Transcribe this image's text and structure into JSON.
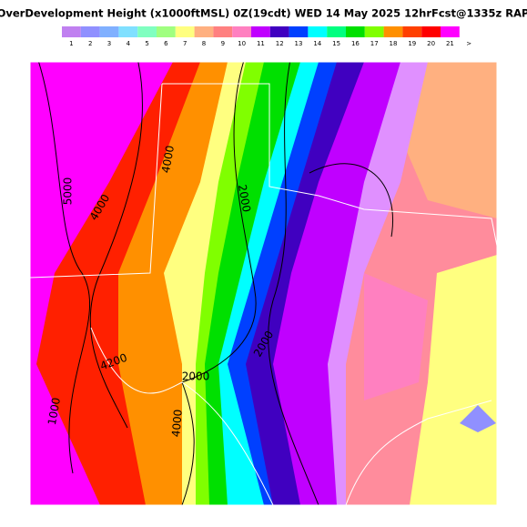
{
  "title": "OverDevelopment Height  (x1000ftMSL)  0Z(19cdt) WED 14 May 2025  12hrFcst@1335z RAP",
  "colorbar": {
    "labels": [
      "1",
      "2",
      "3",
      "4",
      "5",
      "6",
      "7",
      "8",
      "9",
      "10",
      "11",
      "12",
      "13",
      "14",
      "15",
      "16",
      "17",
      "18",
      "19",
      "20",
      "21",
      ">"
    ],
    "colors": [
      "#c080f0",
      "#9090ff",
      "#80b0ff",
      "#80e0ff",
      "#80ffc0",
      "#a0ff80",
      "#ffff80",
      "#ffb080",
      "#ff8080",
      "#ff80c0",
      "#c000ff",
      "#4000c0",
      "#0040ff",
      "#00ffff",
      "#00ff80",
      "#00e000",
      "#80ff00",
      "#ff9000",
      "#ff4000",
      "#ff0000",
      "#ff00ff"
    ]
  },
  "contour_labels": [
    "4000",
    "5000",
    "4000",
    "2000",
    "2000",
    "2000",
    "4200",
    "1000",
    "4000"
  ]
}
